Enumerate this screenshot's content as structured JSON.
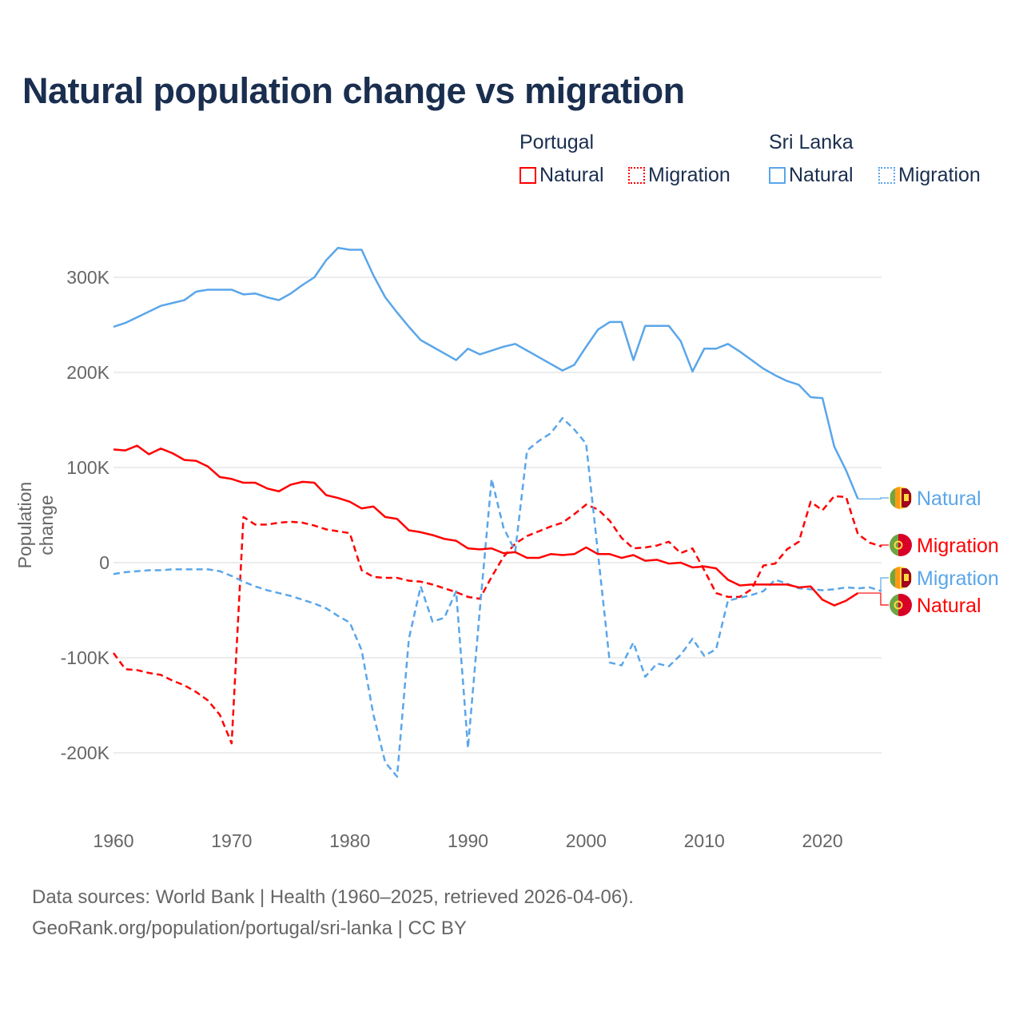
{
  "title": "Natural population change vs migration",
  "legend": {
    "groups": [
      {
        "name": "Portugal",
        "items": [
          "Natural",
          "Migration"
        ]
      },
      {
        "name": "Sri Lanka",
        "items": [
          "Natural",
          "Migration"
        ]
      }
    ]
  },
  "colors": {
    "portugal": "#ff0000",
    "sri_lanka": "#5aa6ea"
  },
  "footer": {
    "line1": "Data sources: World Bank | Health (1960–2025, retrieved 2026-04-06).",
    "line2": "GeoRank.org/population/portugal/sri-lanka | CC BY"
  },
  "chart_data": {
    "type": "line",
    "title": "Natural population change vs migration",
    "xlabel": "",
    "ylabel": "Population change",
    "xlim": [
      1960,
      2025
    ],
    "ylim": [
      -250000,
      350000
    ],
    "x_ticks": [
      1960,
      1970,
      1980,
      1990,
      2000,
      2010,
      2020
    ],
    "y_ticks": [
      {
        "v": -200000,
        "label": "-200K"
      },
      {
        "v": -100000,
        "label": "-100K"
      },
      {
        "v": 0,
        "label": "0"
      },
      {
        "v": 100000,
        "label": "100K"
      },
      {
        "v": 200000,
        "label": "200K"
      },
      {
        "v": 300000,
        "label": "300K"
      }
    ],
    "grid": true,
    "start_year": 1960,
    "series": [
      {
        "name": "Sri Lanka Natural",
        "label": "Natural",
        "country": "Sri Lanka",
        "style": "solid",
        "color": "#5aa6ea",
        "values": [
          248,
          252,
          258,
          264,
          270,
          273,
          276,
          285,
          287,
          287,
          287,
          282,
          283,
          279,
          276,
          283,
          292,
          300,
          318,
          331,
          329,
          329,
          302,
          279,
          263,
          248,
          234,
          227,
          220,
          213,
          225,
          219,
          223,
          227,
          230,
          223,
          216,
          209,
          202,
          208,
          227,
          245,
          253,
          253,
          213,
          249,
          249,
          249,
          233,
          201,
          225,
          225,
          230,
          222,
          213,
          204,
          197,
          191,
          187,
          174,
          173,
          122,
          97,
          67
        ]
      },
      {
        "name": "Portugal Migration",
        "label": "Migration",
        "country": "Portugal",
        "style": "dashed",
        "color": "#ff0000",
        "values": [
          -95,
          -112,
          -113,
          -116,
          -118,
          -124,
          -129,
          -136,
          -145,
          -160,
          -190,
          48,
          40,
          40,
          42,
          43,
          42,
          39,
          35,
          33,
          31,
          -8,
          -15,
          -16,
          -16,
          -19,
          -20,
          -23,
          -27,
          -31,
          -36,
          -38,
          -15,
          6,
          20,
          28,
          33,
          38,
          42,
          51,
          61,
          56,
          44,
          26,
          15,
          16,
          18,
          22,
          10,
          15,
          -8,
          -32,
          -36,
          -36,
          -28,
          -3,
          -1,
          14,
          22,
          64,
          55,
          70,
          69,
          30,
          21,
          17
        ]
      },
      {
        "name": "Sri Lanka Migration",
        "label": "Migration",
        "country": "Sri Lanka",
        "style": "dashed",
        "color": "#5aa6ea",
        "values": [
          -12,
          -10,
          -9,
          -8,
          -8,
          -7,
          -7,
          -7,
          -7,
          -9,
          -14,
          -20,
          -25,
          -29,
          -32,
          -35,
          -39,
          -43,
          -48,
          -56,
          -63,
          -92,
          -160,
          -210,
          -225,
          -80,
          -25,
          -62,
          -58,
          -30,
          -195,
          -50,
          88,
          37,
          12,
          118,
          128,
          136,
          152,
          140,
          125,
          10,
          -105,
          -108,
          -84,
          -120,
          -106,
          -109,
          -97,
          -80,
          -98,
          -91,
          -40,
          -37,
          -34,
          -30,
          -18,
          -22,
          -27,
          -28,
          -29,
          -28,
          -26,
          -27,
          -26,
          -30
        ]
      },
      {
        "name": "Portugal Natural",
        "label": "Natural",
        "country": "Portugal",
        "style": "solid",
        "color": "#ff0000",
        "values": [
          119,
          118,
          123,
          114,
          120,
          115,
          108,
          107,
          101,
          90,
          88,
          84,
          84,
          78,
          75,
          82,
          85,
          84,
          71,
          68,
          64,
          57,
          59,
          48,
          46,
          34,
          32,
          29,
          25,
          23,
          15,
          14,
          15,
          10,
          11,
          5,
          5,
          9,
          8,
          9,
          16,
          9,
          9,
          5,
          8,
          2,
          3,
          -1,
          0,
          -5,
          -4,
          -6,
          -18,
          -24,
          -23,
          -23,
          -23,
          -23,
          -26,
          -25,
          -39,
          -45,
          -40,
          -32
        ]
      }
    ],
    "value_units": "thousands"
  }
}
